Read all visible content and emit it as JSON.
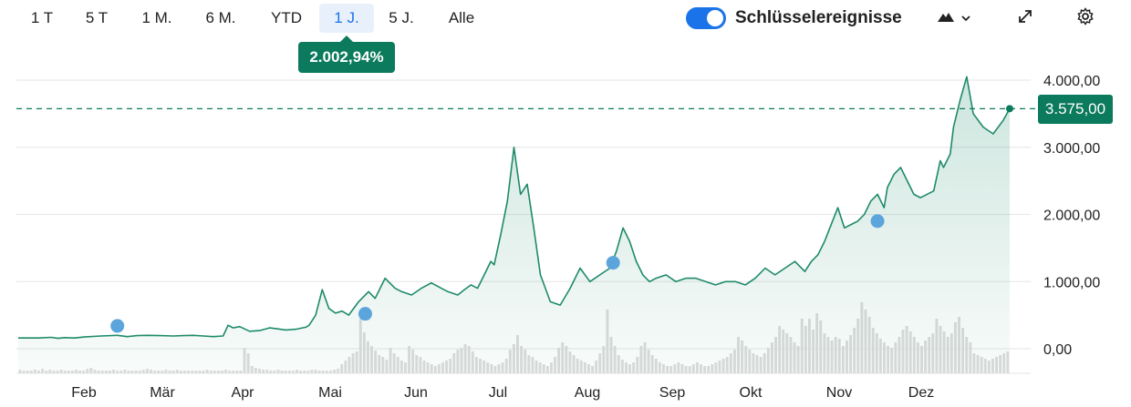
{
  "toolbar": {
    "ranges": [
      "1 T",
      "5 T",
      "1 M.",
      "6 M.",
      "YTD",
      "1 J.",
      "5 J.",
      "Alle"
    ],
    "active_range": "1 J.",
    "key_events_label": "Schlüsselereignisse",
    "key_events_on": true
  },
  "change_badge": "2.002,94%",
  "current_price_label": "3.575,00",
  "colors": {
    "line": "#1e8a6a",
    "accent": "#0c7a5c",
    "toggle": "#1a73e8",
    "event_marker": "#5ba4dc",
    "volume": "#dcdcdc"
  },
  "icons": [
    "mountain-chart-icon",
    "chevron-down-icon",
    "expand-icon",
    "gear-icon"
  ],
  "chart_data": {
    "type": "area",
    "ylim": [
      0,
      4000
    ],
    "y_ticks": [
      0,
      1000,
      2000,
      3000,
      4000
    ],
    "y_tick_labels": [
      "0,00",
      "1.000,00",
      "2.000,00",
      "3.000,00",
      "4.000,00"
    ],
    "x_labels": [
      "Feb",
      "Mär",
      "Apr",
      "Mai",
      "Jun",
      "Jul",
      "Aug",
      "Sep",
      "Okt",
      "Nov",
      "Dez"
    ],
    "reference_line": 3575,
    "series": [
      {
        "x": [
          0,
          6,
          10,
          12,
          14,
          17,
          20,
          25,
          30,
          33,
          36,
          39,
          43,
          47,
          50,
          53,
          56,
          59,
          62,
          63.5,
          65,
          67,
          70,
          73,
          76,
          78,
          81,
          84,
          87,
          88,
          90,
          92,
          94,
          96,
          98,
          100,
          103,
          106,
          108,
          111,
          114,
          116,
          119,
          122,
          125,
          128,
          130,
          133,
          135,
          137,
          139,
          141,
          143,
          144,
          146,
          148,
          150,
          152,
          154,
          156,
          158,
          161,
          164,
          167,
          170,
          173,
          176,
          179,
          181,
          183,
          185,
          187,
          189,
          191,
          193,
          196,
          199,
          202,
          205,
          208,
          211,
          214,
          217,
          220,
          223,
          226,
          229,
          232,
          235,
          238,
          240,
          242,
          244,
          246,
          248,
          250,
          252,
          254,
          256,
          258,
          260,
          262,
          263,
          265,
          267,
          269,
          271,
          273,
          275,
          277,
          279,
          280,
          282,
          283,
          285,
          287,
          289,
          292,
          295,
          298,
          300
        ],
        "y": [
          160,
          160,
          170,
          155,
          165,
          160,
          175,
          190,
          200,
          180,
          195,
          200,
          195,
          190,
          195,
          200,
          190,
          180,
          190,
          350,
          310,
          330,
          260,
          270,
          310,
          300,
          280,
          290,
          320,
          350,
          500,
          880,
          600,
          530,
          560,
          500,
          700,
          850,
          750,
          1050,
          900,
          850,
          800,
          900,
          980,
          900,
          850,
          800,
          880,
          950,
          900,
          1100,
          1300,
          1250,
          1700,
          2200,
          3000,
          2300,
          2450,
          1800,
          1100,
          700,
          650,
          900,
          1200,
          1000,
          1100,
          1200,
          1450,
          1800,
          1600,
          1300,
          1100,
          1000,
          1050,
          1100,
          1000,
          1050,
          1050,
          1000,
          950,
          1000,
          1000,
          950,
          1050,
          1200,
          1100,
          1200,
          1300,
          1150,
          1300,
          1400,
          1600,
          1850,
          2100,
          1800,
          1850,
          1900,
          2000,
          2200,
          2300,
          2100,
          2400,
          2600,
          2700,
          2500,
          2300,
          2250,
          2300,
          2350,
          2800,
          2700,
          2900,
          3300,
          3700,
          4050,
          3500,
          3300,
          3200,
          3400,
          3575
        ]
      }
    ],
    "key_event_markers": [
      {
        "x": 30,
        "y": 340
      },
      {
        "x": 105,
        "y": 520
      },
      {
        "x": 180,
        "y": 1280
      },
      {
        "x": 260,
        "y": 1900
      }
    ]
  }
}
